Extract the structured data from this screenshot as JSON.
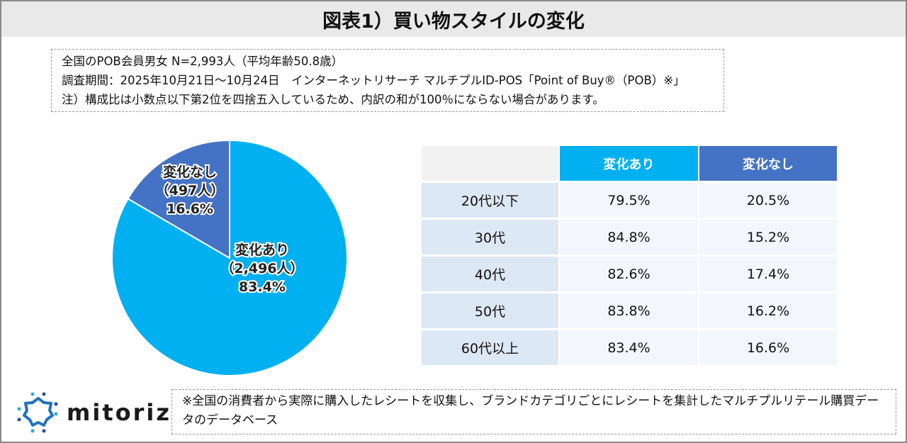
{
  "title": "図表1）買い物スタイルの変化",
  "notes": [
    "全国のPOB会員男女 N=2,993人（平均年齢50.8歳）",
    "調査期間：2025年10月21日～10月24日　インターネットリサーチ マルチプルID-POS「Point of Buy®（POB）※」",
    "注）構成比は小数点以下第2位を四捨五入しているため、内訳の和が100％にならない場合があります。"
  ],
  "chart_data": [
    {
      "type": "pie",
      "slices": [
        {
          "name": "変化あり",
          "count": "（2,496人）",
          "value": 83.4,
          "value_label": "83.4%",
          "color": "#00b0f0"
        },
        {
          "name": "変化なし",
          "count": "（497人）",
          "value": 16.6,
          "value_label": "16.6%",
          "color": "#4472c4"
        }
      ]
    },
    {
      "type": "table",
      "columns": [
        "",
        "変化あり",
        "変化なし"
      ],
      "rows": [
        [
          "20代以下",
          "79.5%",
          "20.5%"
        ],
        [
          "30代",
          "84.8%",
          "15.2%"
        ],
        [
          "40代",
          "82.6%",
          "17.4%"
        ],
        [
          "50代",
          "83.8%",
          "16.2%"
        ],
        [
          "60代以上",
          "83.4%",
          "16.6%"
        ]
      ]
    }
  ],
  "logo": "mitoriz",
  "footnote": "※全国の消費者から実際に購入したレシートを収集し、ブランドカテゴリごとにレシートを集計したマルチプルリテール購買データのデータベース"
}
